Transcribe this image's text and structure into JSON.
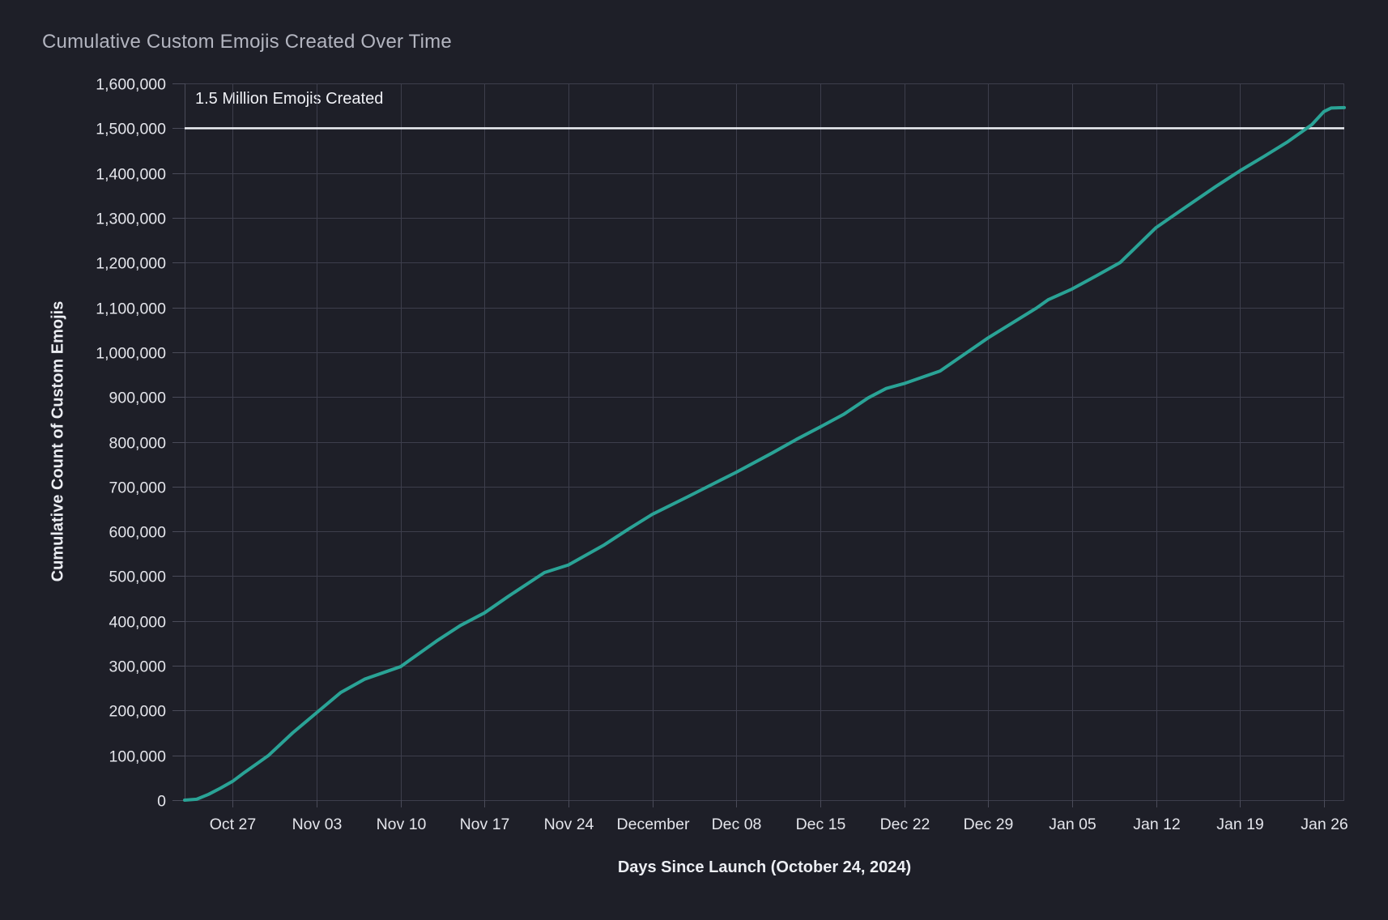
{
  "header": {
    "title": "Cumulative Custom Emojis Created Over Time"
  },
  "colors": {
    "background": "#1e1f28",
    "grid": "#3d3e4c",
    "axis_frame": "#4a4b59",
    "tick_text": "#e4e5eb",
    "title_text": "#b3b5c0",
    "axis_title_text": "#eceef3",
    "annotation_text": "#eff0f5",
    "series_line": "#2aa396",
    "reference_line": "#eef0f5"
  },
  "chart_data": {
    "type": "line",
    "title": "Cumulative Custom Emojis Created Over Time",
    "xlabel": "Days Since Launch (October 24, 2024)",
    "ylabel": "Cumulative Count of Custom Emojis",
    "ylim": [
      0,
      1600000
    ],
    "y_tick_step": 100000,
    "grid": "on",
    "legend": "none",
    "y_ticks": [
      "0",
      "100,000",
      "200,000",
      "300,000",
      "400,000",
      "500,000",
      "600,000",
      "700,000",
      "800,000",
      "900,000",
      "1,000,000",
      "1,100,000",
      "1,200,000",
      "1,300,000",
      "1,400,000",
      "1,500,000",
      "1,600,000"
    ],
    "x_domain_days": [
      -1,
      95.7
    ],
    "x_ticks": [
      {
        "label": "Oct 27",
        "day": 3
      },
      {
        "label": "Nov 03",
        "day": 10
      },
      {
        "label": "Nov 10",
        "day": 17
      },
      {
        "label": "Nov 17",
        "day": 24
      },
      {
        "label": "Nov 24",
        "day": 31
      },
      {
        "label": "December",
        "day": 38
      },
      {
        "label": "Dec 08",
        "day": 45
      },
      {
        "label": "Dec 15",
        "day": 52
      },
      {
        "label": "Dec 22",
        "day": 59
      },
      {
        "label": "Dec 29",
        "day": 66
      },
      {
        "label": "Jan 05",
        "day": 73
      },
      {
        "label": "Jan 12",
        "day": 80
      },
      {
        "label": "Jan 19",
        "day": 87
      },
      {
        "label": "Jan 26",
        "day": 94
      }
    ],
    "reference_line": {
      "label": "1.5 Million Emojis Created",
      "value": 1500000
    },
    "series": [
      {
        "name": "Cumulative Custom Emojis",
        "color": "#2aa396",
        "points": [
          {
            "day": -1,
            "value": 0
          },
          {
            "day": 0,
            "value": 2000
          },
          {
            "day": 1,
            "value": 13000
          },
          {
            "day": 2,
            "value": 27000
          },
          {
            "day": 3,
            "value": 42000
          },
          {
            "day": 4,
            "value": 62000
          },
          {
            "day": 5,
            "value": 81000
          },
          {
            "day": 6,
            "value": 100000
          },
          {
            "day": 8,
            "value": 150000
          },
          {
            "day": 10,
            "value": 195000
          },
          {
            "day": 12,
            "value": 240000
          },
          {
            "day": 14,
            "value": 270000
          },
          {
            "day": 17,
            "value": 298000
          },
          {
            "day": 20,
            "value": 355000
          },
          {
            "day": 22,
            "value": 390000
          },
          {
            "day": 24,
            "value": 418000
          },
          {
            "day": 26,
            "value": 455000
          },
          {
            "day": 29,
            "value": 508000
          },
          {
            "day": 31,
            "value": 525000
          },
          {
            "day": 34,
            "value": 570000
          },
          {
            "day": 36,
            "value": 605000
          },
          {
            "day": 38,
            "value": 638000
          },
          {
            "day": 41,
            "value": 678000
          },
          {
            "day": 43,
            "value": 705000
          },
          {
            "day": 45,
            "value": 732000
          },
          {
            "day": 48,
            "value": 775000
          },
          {
            "day": 50,
            "value": 805000
          },
          {
            "day": 52,
            "value": 833000
          },
          {
            "day": 54,
            "value": 862000
          },
          {
            "day": 56,
            "value": 898000
          },
          {
            "day": 57.5,
            "value": 919000
          },
          {
            "day": 59,
            "value": 930000
          },
          {
            "day": 62,
            "value": 958000
          },
          {
            "day": 64,
            "value": 995000
          },
          {
            "day": 66,
            "value": 1032000
          },
          {
            "day": 68,
            "value": 1065000
          },
          {
            "day": 70,
            "value": 1098000
          },
          {
            "day": 71,
            "value": 1117000
          },
          {
            "day": 73,
            "value": 1141000
          },
          {
            "day": 75,
            "value": 1170000
          },
          {
            "day": 77,
            "value": 1200000
          },
          {
            "day": 80,
            "value": 1278000
          },
          {
            "day": 82,
            "value": 1315000
          },
          {
            "day": 85,
            "value": 1370000
          },
          {
            "day": 87,
            "value": 1405000
          },
          {
            "day": 89,
            "value": 1437000
          },
          {
            "day": 91,
            "value": 1470000
          },
          {
            "day": 93,
            "value": 1508000
          },
          {
            "day": 94,
            "value": 1537000
          },
          {
            "day": 94.6,
            "value": 1545000
          },
          {
            "day": 95.7,
            "value": 1546000
          }
        ]
      }
    ]
  }
}
